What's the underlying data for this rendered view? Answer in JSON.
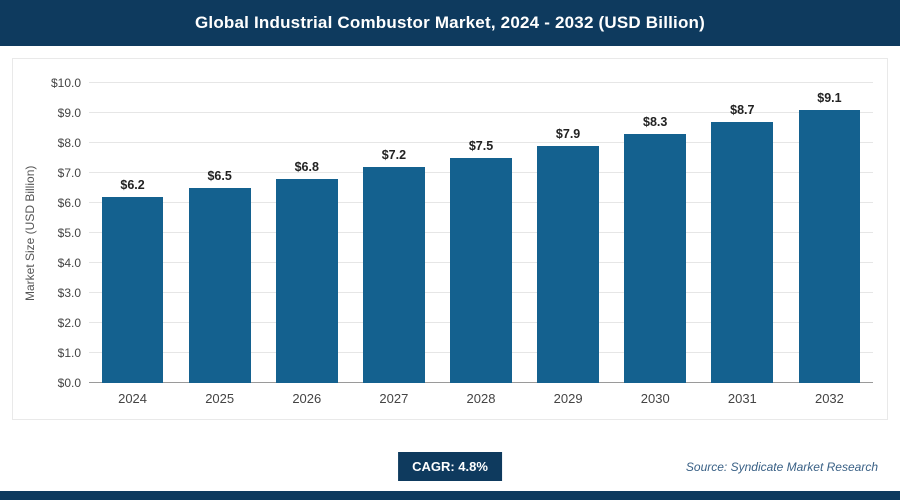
{
  "header": {
    "title": "Global Industrial Combustor Market, 2024 - 2032 (USD Billion)"
  },
  "chart_data": {
    "type": "bar",
    "title": "Global Industrial Combustor Market, 2024 - 2032 (USD Billion)",
    "categories": [
      "2024",
      "2025",
      "2026",
      "2027",
      "2028",
      "2029",
      "2030",
      "2031",
      "2032"
    ],
    "values": [
      6.2,
      6.5,
      6.8,
      7.2,
      7.5,
      7.9,
      8.3,
      8.7,
      9.1
    ],
    "bar_labels": [
      "$6.2",
      "$6.5",
      "$6.8",
      "$7.2",
      "$7.5",
      "$7.9",
      "$8.3",
      "$8.7",
      "$9.1"
    ],
    "xlabel": "",
    "ylabel": "Market Size (USD Billion)",
    "ylim": [
      0,
      10
    ],
    "ytick_step": 1,
    "ytick_labels": [
      "$0.0",
      "$1.0",
      "$2.0",
      "$3.0",
      "$4.0",
      "$5.0",
      "$6.0",
      "$7.0",
      "$8.0",
      "$9.0",
      "$10.0"
    ],
    "grid": true,
    "legend": false,
    "bar_color": "#14618f"
  },
  "footer": {
    "cagr_label": "CAGR: 4.8%",
    "source": "Source: Syndicate Market Research"
  },
  "colors": {
    "header_bg": "#0e3a5e",
    "bar": "#14618f",
    "accent": "#0e3a5e"
  }
}
